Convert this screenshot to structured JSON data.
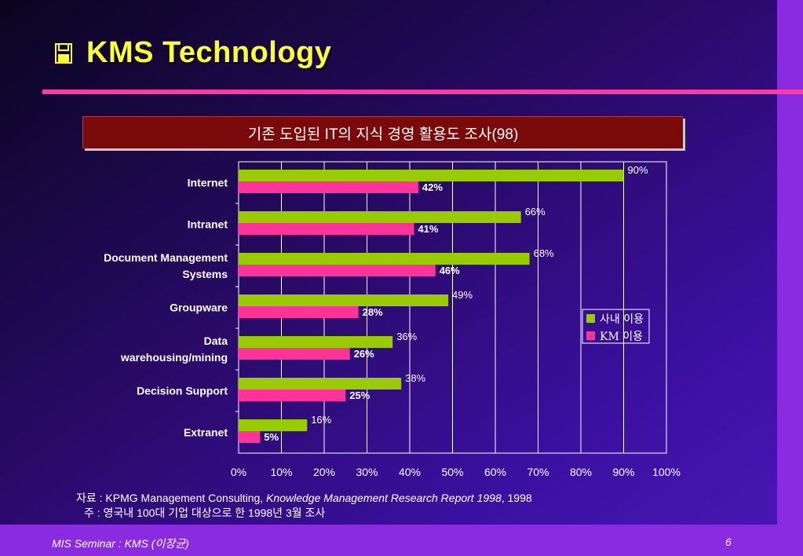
{
  "slide": {
    "title": "KMS Technology",
    "caption": "기존 도입된 IT의 지식 경영 활용도 조사(98)",
    "source_prefix": "자료 : KPMG Management Consulting, ",
    "source_title": "Knowledge Management Research Report 1998",
    "source_suffix": ", 1998",
    "note": "주 : 영국내 100대 기업 대상으로 한 1998년 3월 조사",
    "footer_left": "MIS Seminar : KMS (이장균)",
    "footer_right": "6"
  },
  "colors": {
    "background": "#2a0a6a",
    "accent_bar": "#8a2be2",
    "title": "#ffff33",
    "rule": "#ff3aa0",
    "caption_bg": "#7a0a0a",
    "series_internal": "#99cc00",
    "series_km": "#ff3399"
  },
  "icons": {
    "title_icon": "floppy-disk-icon"
  },
  "chart_data": {
    "type": "bar",
    "orientation": "horizontal",
    "categories": [
      "Internet",
      "Intranet",
      "Document Management Systems",
      "Groupware",
      "Data warehousing/mining",
      "Decision Support",
      "Extranet"
    ],
    "category_lines": [
      [
        "Internet"
      ],
      [
        "Intranet"
      ],
      [
        "Document Management",
        "Systems"
      ],
      [
        "Groupware"
      ],
      [
        "Data",
        "warehousing/mining"
      ],
      [
        "Decision Support"
      ],
      [
        "Extranet"
      ]
    ],
    "series": [
      {
        "name": "사내 이용",
        "values": [
          90,
          66,
          68,
          49,
          36,
          38,
          16
        ]
      },
      {
        "name": "KM 이용",
        "values": [
          42,
          41,
          46,
          28,
          26,
          25,
          5
        ]
      }
    ],
    "xlim": [
      0,
      100
    ],
    "xticks": [
      "0%",
      "10%",
      "20%",
      "30%",
      "40%",
      "50%",
      "60%",
      "70%",
      "80%",
      "90%",
      "100%"
    ],
    "value_suffix": "%",
    "grid": true,
    "legend": "right"
  }
}
